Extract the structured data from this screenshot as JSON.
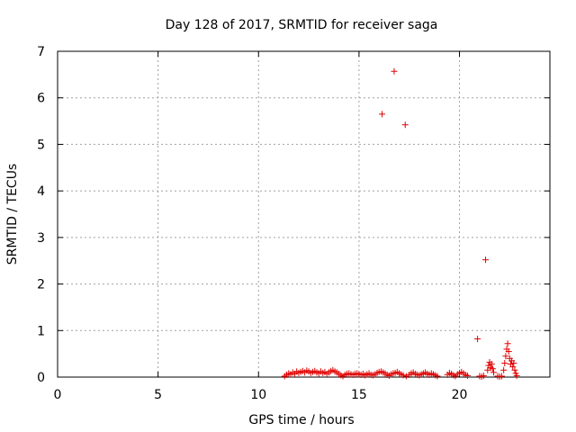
{
  "chart_data": {
    "type": "scatter",
    "title": "Day 128 of 2017, SRMTID for receiver saga",
    "xlabel": "GPS time / hours",
    "ylabel": "SRMTID / TECUs",
    "xlim": [
      0,
      24.5
    ],
    "ylim": [
      0,
      7
    ],
    "xticks": [
      0,
      5,
      10,
      15,
      20
    ],
    "yticks": [
      0,
      1,
      2,
      3,
      4,
      5,
      6,
      7
    ],
    "grid": true,
    "marker": "+",
    "color": "#e00000",
    "series": [
      {
        "name": "SRMTID",
        "points": [
          [
            11.3,
            0.02
          ],
          [
            11.4,
            0.05
          ],
          [
            11.5,
            0.08
          ],
          [
            11.6,
            0.06
          ],
          [
            11.7,
            0.1
          ],
          [
            11.8,
            0.07
          ],
          [
            11.9,
            0.12
          ],
          [
            12.0,
            0.09
          ],
          [
            12.1,
            0.11
          ],
          [
            12.2,
            0.13
          ],
          [
            12.3,
            0.1
          ],
          [
            12.4,
            0.14
          ],
          [
            12.5,
            0.12
          ],
          [
            12.6,
            0.09
          ],
          [
            12.7,
            0.11
          ],
          [
            12.8,
            0.13
          ],
          [
            12.9,
            0.1
          ],
          [
            13.0,
            0.08
          ],
          [
            13.1,
            0.12
          ],
          [
            13.2,
            0.09
          ],
          [
            13.3,
            0.11
          ],
          [
            13.4,
            0.07
          ],
          [
            13.5,
            0.1
          ],
          [
            13.6,
            0.13
          ],
          [
            13.7,
            0.15
          ],
          [
            13.8,
            0.12
          ],
          [
            13.9,
            0.1
          ],
          [
            14.0,
            0.07
          ],
          [
            14.1,
            0.04
          ],
          [
            14.2,
            0.02
          ],
          [
            14.3,
            0.05
          ],
          [
            14.4,
            0.07
          ],
          [
            14.5,
            0.08
          ],
          [
            14.6,
            0.06
          ],
          [
            14.7,
            0.05
          ],
          [
            14.8,
            0.07
          ],
          [
            14.9,
            0.08
          ],
          [
            15.0,
            0.06
          ],
          [
            15.1,
            0.05
          ],
          [
            15.2,
            0.07
          ],
          [
            15.3,
            0.04
          ],
          [
            15.4,
            0.06
          ],
          [
            15.5,
            0.08
          ],
          [
            15.6,
            0.05
          ],
          [
            15.7,
            0.04
          ],
          [
            15.8,
            0.06
          ],
          [
            15.9,
            0.09
          ],
          [
            16.0,
            0.11
          ],
          [
            16.1,
            0.12
          ],
          [
            16.15,
            5.65
          ],
          [
            16.2,
            0.1
          ],
          [
            16.3,
            0.08
          ],
          [
            16.4,
            0.05
          ],
          [
            16.5,
            0.03
          ],
          [
            16.6,
            0.06
          ],
          [
            16.7,
            0.08
          ],
          [
            16.75,
            6.57
          ],
          [
            16.8,
            0.09
          ],
          [
            16.9,
            0.11
          ],
          [
            17.0,
            0.08
          ],
          [
            17.1,
            0.06
          ],
          [
            17.2,
            0.04
          ],
          [
            17.3,
            5.42
          ],
          [
            17.35,
            0.02
          ],
          [
            17.5,
            0.05
          ],
          [
            17.6,
            0.08
          ],
          [
            17.7,
            0.1
          ],
          [
            17.8,
            0.07
          ],
          [
            17.9,
            0.05
          ],
          [
            18.0,
            0.04
          ],
          [
            18.1,
            0.06
          ],
          [
            18.2,
            0.08
          ],
          [
            18.3,
            0.1
          ],
          [
            18.4,
            0.07
          ],
          [
            18.5,
            0.05
          ],
          [
            18.6,
            0.08
          ],
          [
            18.7,
            0.06
          ],
          [
            18.8,
            0.04
          ],
          [
            18.9,
            0.02
          ],
          [
            19.4,
            0.05
          ],
          [
            19.5,
            0.09
          ],
          [
            19.6,
            0.07
          ],
          [
            19.7,
            0.04
          ],
          [
            19.8,
            0.02
          ],
          [
            19.9,
            0.06
          ],
          [
            20.0,
            0.09
          ],
          [
            20.1,
            0.11
          ],
          [
            20.2,
            0.08
          ],
          [
            20.3,
            0.05
          ],
          [
            20.4,
            0.03
          ],
          [
            20.9,
            0.82
          ],
          [
            21.0,
            0.02
          ],
          [
            21.1,
            0.01
          ],
          [
            21.2,
            0.03
          ],
          [
            21.3,
            2.52
          ],
          [
            21.4,
            0.15
          ],
          [
            21.45,
            0.25
          ],
          [
            21.5,
            0.32
          ],
          [
            21.55,
            0.2
          ],
          [
            21.6,
            0.28
          ],
          [
            21.65,
            0.18
          ],
          [
            21.7,
            0.1
          ],
          [
            21.9,
            0.02
          ],
          [
            22.0,
            0.01
          ],
          [
            22.1,
            0.02
          ],
          [
            22.2,
            0.15
          ],
          [
            22.25,
            0.3
          ],
          [
            22.3,
            0.45
          ],
          [
            22.35,
            0.6
          ],
          [
            22.4,
            0.72
          ],
          [
            22.45,
            0.55
          ],
          [
            22.5,
            0.4
          ],
          [
            22.55,
            0.28
          ],
          [
            22.6,
            0.35
          ],
          [
            22.65,
            0.22
          ],
          [
            22.7,
            0.3
          ],
          [
            22.75,
            0.15
          ],
          [
            22.8,
            0.08
          ],
          [
            22.85,
            0.03
          ]
        ]
      }
    ]
  }
}
